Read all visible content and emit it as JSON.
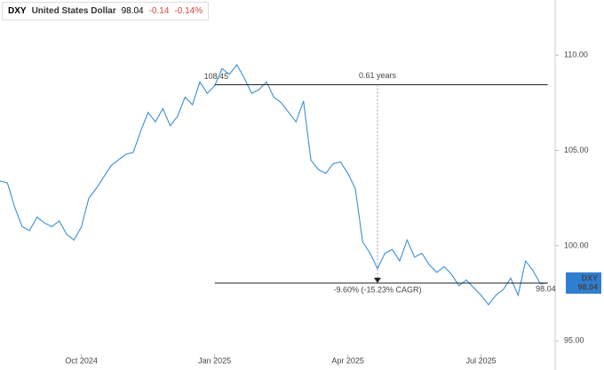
{
  "header": {
    "symbol": "DXY",
    "name": "United States Dollar",
    "last": "98.04",
    "change": "-0.14",
    "change_pct": "-0.14%"
  },
  "chart_data": {
    "type": "line",
    "series": [
      {
        "name": "DXY",
        "color": "#3a8fd8",
        "values": [
          103.4,
          103.3,
          102.0,
          101.0,
          100.8,
          101.5,
          101.2,
          101.0,
          101.3,
          100.6,
          100.3,
          101.0,
          102.5,
          103.0,
          103.6,
          104.2,
          104.5,
          104.8,
          104.9,
          106.0,
          107.0,
          106.5,
          107.2,
          106.3,
          106.8,
          107.8,
          107.4,
          108.6,
          108.0,
          108.4,
          109.3,
          109.0,
          109.5,
          108.8,
          108.0,
          108.2,
          108.6,
          107.8,
          107.5,
          107.0,
          106.5,
          107.6,
          104.5,
          104.0,
          103.8,
          104.3,
          104.4,
          103.8,
          103.0,
          100.2,
          99.6,
          98.8,
          99.6,
          99.8,
          99.2,
          100.3,
          99.4,
          99.6,
          99.0,
          98.6,
          98.9,
          98.5,
          97.9,
          98.2,
          97.8,
          97.4,
          96.9,
          97.4,
          97.7,
          98.3,
          97.4,
          99.2,
          98.7,
          98.0,
          98.04
        ]
      }
    ],
    "xlim": [
      0,
      75
    ],
    "xticks": [
      {
        "value": 11,
        "label": "Oct 2024"
      },
      {
        "value": 29,
        "label": "Jan 2025"
      },
      {
        "value": 47,
        "label": "Apr 2025"
      },
      {
        "value": 65,
        "label": "Jul 2025"
      }
    ],
    "ylim": [
      94.5,
      112.9
    ],
    "yticks": [
      {
        "value": 95,
        "label": "95.00"
      },
      {
        "value": 100,
        "label": "100.00"
      },
      {
        "value": 105,
        "label": "105.00"
      },
      {
        "value": 110,
        "label": "110.00"
      }
    ],
    "reference_lines": [
      {
        "value": 108.45,
        "label": "108.45",
        "x": [
          29,
          74
        ]
      },
      {
        "value": 98.04,
        "label": "98.04",
        "x": [
          29,
          74
        ]
      }
    ],
    "measure": {
      "x": 51,
      "duration": "0.61 years",
      "change": "-9.60% (-15.23% CAGR)"
    },
    "axis_tag": {
      "symbol": "DXY",
      "value": "98.04",
      "color": "#2f7fd0"
    }
  }
}
